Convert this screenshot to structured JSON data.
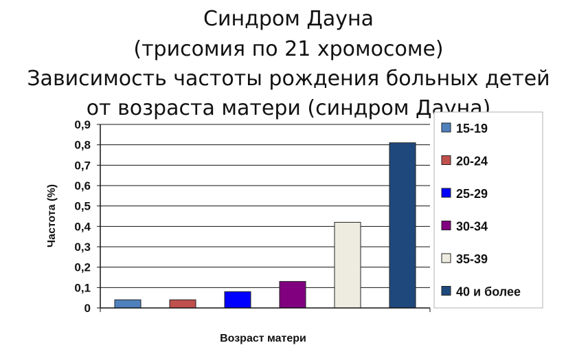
{
  "title_lines": [
    "Синдром Дауна",
    "(трисомия по 21 хромосоме)",
    "Зависимость частоты рождения больных детей",
    "от возраста матери (синдром Дауна)"
  ],
  "chart_data": {
    "type": "bar",
    "xlabel": "Возраст матери",
    "ylabel": "Частота (%)",
    "ylim": [
      0,
      0.9
    ],
    "yticks": [
      "0",
      "0,1",
      "0,2",
      "0,3",
      "0,4",
      "0,5",
      "0,6",
      "0,7",
      "0,8",
      "0,9"
    ],
    "grid": true,
    "legend_position": "right",
    "series": [
      {
        "name": "15-19",
        "value": 0.04,
        "color": "#4f81bd"
      },
      {
        "name": "20-24",
        "value": 0.04,
        "color": "#c0504d"
      },
      {
        "name": "25-29",
        "value": 0.08,
        "color": "#0000ff"
      },
      {
        "name": "30-34",
        "value": 0.13,
        "color": "#800080"
      },
      {
        "name": "35-39",
        "value": 0.42,
        "color": "#eeece1"
      },
      {
        "name": "40 и более",
        "value": 0.81,
        "color": "#1f497d"
      }
    ]
  }
}
